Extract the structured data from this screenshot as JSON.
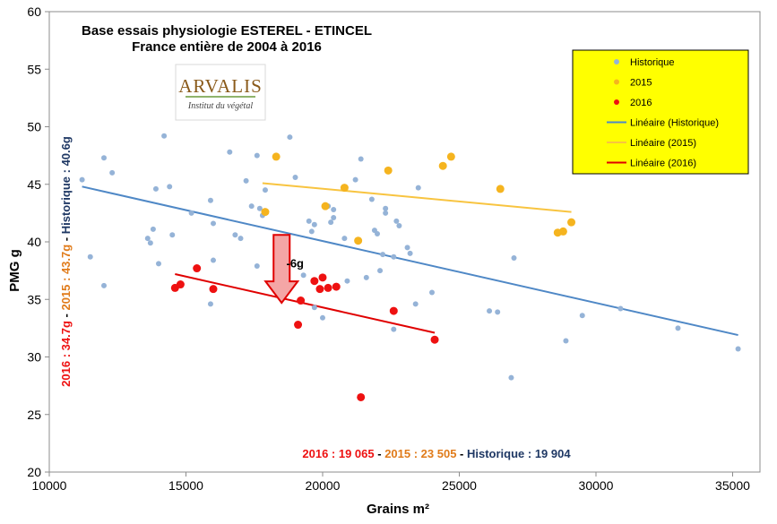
{
  "chart_data": {
    "type": "scatter",
    "title": "Base essais physiologie ESTEREL - ETINCEL",
    "subtitle": "France entière de 2004 à 2016",
    "xlabel": "Grains m²",
    "ylabel": "PMG g",
    "xlim": [
      10000,
      36000
    ],
    "ylim": [
      20,
      60
    ],
    "x_ticks": [
      "10000",
      "15000",
      "20000",
      "25000",
      "30000",
      "35000"
    ],
    "y_ticks": [
      "20",
      "25",
      "30",
      "35",
      "40",
      "45",
      "50",
      "55",
      "60"
    ],
    "grid": false,
    "legend_position": "top-right",
    "legend": [
      {
        "label": "Historique",
        "kind": "marker",
        "color": "#95b3d7"
      },
      {
        "label": "2015",
        "kind": "marker",
        "color": "#f5b41f"
      },
      {
        "label": "2016",
        "kind": "marker",
        "color": "#ee1111"
      },
      {
        "label": "Linéaire (Historique)",
        "kind": "line",
        "color": "#4f88c6"
      },
      {
        "label": "Linéaire (2015)",
        "kind": "line",
        "color": "#f8c440"
      },
      {
        "label": "Linéaire (2016)",
        "kind": "line",
        "color": "#e00000"
      }
    ],
    "series": [
      {
        "name": "Historique",
        "color": "#95b3d7",
        "points": [
          [
            11200,
            45.4
          ],
          [
            11500,
            38.7
          ],
          [
            12000,
            47.3
          ],
          [
            12000,
            36.2
          ],
          [
            12300,
            46.0
          ],
          [
            13600,
            40.3
          ],
          [
            13700,
            39.9
          ],
          [
            13800,
            41.1
          ],
          [
            13900,
            44.6
          ],
          [
            14000,
            38.1
          ],
          [
            14200,
            49.2
          ],
          [
            14400,
            44.8
          ],
          [
            14500,
            40.6
          ],
          [
            15200,
            42.5
          ],
          [
            15900,
            43.6
          ],
          [
            15900,
            34.6
          ],
          [
            16000,
            41.6
          ],
          [
            16000,
            38.4
          ],
          [
            16600,
            47.8
          ],
          [
            16800,
            40.6
          ],
          [
            17000,
            40.3
          ],
          [
            17200,
            45.3
          ],
          [
            17400,
            43.1
          ],
          [
            17600,
            47.5
          ],
          [
            17600,
            37.9
          ],
          [
            17700,
            42.9
          ],
          [
            17800,
            42.3
          ],
          [
            17900,
            44.5
          ],
          [
            18300,
            40.2
          ],
          [
            18800,
            49.1
          ],
          [
            19000,
            45.6
          ],
          [
            19300,
            37.1
          ],
          [
            19500,
            41.8
          ],
          [
            19600,
            40.9
          ],
          [
            19700,
            41.5
          ],
          [
            19700,
            34.3
          ],
          [
            20000,
            33.4
          ],
          [
            20200,
            43.1
          ],
          [
            20300,
            41.7
          ],
          [
            20400,
            42.1
          ],
          [
            20400,
            42.8
          ],
          [
            20800,
            40.3
          ],
          [
            20900,
            36.6
          ],
          [
            21200,
            45.4
          ],
          [
            21400,
            47.2
          ],
          [
            21600,
            36.9
          ],
          [
            21800,
            43.7
          ],
          [
            21900,
            41.0
          ],
          [
            22000,
            40.7
          ],
          [
            22100,
            37.5
          ],
          [
            22200,
            38.9
          ],
          [
            22300,
            42.9
          ],
          [
            22300,
            42.5
          ],
          [
            22600,
            32.4
          ],
          [
            22600,
            38.7
          ],
          [
            22700,
            41.8
          ],
          [
            22800,
            41.4
          ],
          [
            23100,
            39.5
          ],
          [
            23200,
            39.0
          ],
          [
            23400,
            34.6
          ],
          [
            23500,
            44.7
          ],
          [
            24000,
            35.6
          ],
          [
            26100,
            34.0
          ],
          [
            26400,
            33.9
          ],
          [
            26900,
            28.2
          ],
          [
            27000,
            38.6
          ],
          [
            28900,
            31.4
          ],
          [
            29500,
            33.6
          ],
          [
            30900,
            34.2
          ],
          [
            33000,
            32.5
          ],
          [
            35200,
            30.7
          ]
        ]
      },
      {
        "name": "2015",
        "color": "#f5b41f",
        "points": [
          [
            17900,
            42.6
          ],
          [
            18300,
            47.4
          ],
          [
            20100,
            43.1
          ],
          [
            20800,
            44.7
          ],
          [
            21300,
            40.1
          ],
          [
            22400,
            46.2
          ],
          [
            24400,
            46.6
          ],
          [
            24700,
            47.4
          ],
          [
            26500,
            44.6
          ],
          [
            28600,
            40.8
          ],
          [
            28800,
            40.9
          ],
          [
            29100,
            41.7
          ]
        ]
      },
      {
        "name": "2016",
        "color": "#ee1111",
        "points": [
          [
            14600,
            36.0
          ],
          [
            14800,
            36.3
          ],
          [
            15400,
            37.7
          ],
          [
            16000,
            35.9
          ],
          [
            19100,
            32.8
          ],
          [
            19200,
            34.9
          ],
          [
            19700,
            36.6
          ],
          [
            19900,
            35.9
          ],
          [
            20000,
            36.9
          ],
          [
            20200,
            36.0
          ],
          [
            20500,
            36.1
          ],
          [
            21400,
            26.5
          ],
          [
            22600,
            34.0
          ],
          [
            24100,
            31.5
          ]
        ]
      }
    ],
    "trendlines": [
      {
        "name": "Linéaire (Historique)",
        "color": "#4f88c6",
        "from": [
          11200,
          44.8
        ],
        "to": [
          35200,
          31.9
        ]
      },
      {
        "name": "Linéaire (2015)",
        "color": "#f8c440",
        "from": [
          17800,
          45.1
        ],
        "to": [
          29100,
          42.6
        ]
      },
      {
        "name": "Linéaire (2016)",
        "color": "#e00000",
        "from": [
          14600,
          37.2
        ],
        "to": [
          24100,
          32.1
        ]
      }
    ],
    "arrow": {
      "label": "-6g",
      "from": [
        18500,
        40.6
      ],
      "to": [
        18500,
        34.7
      ]
    },
    "annotation_bottom": {
      "part_2016": "2016 : 19 065",
      "sep1": " - ",
      "part_2015": "2015 : 23 505",
      "sep2": " - ",
      "part_hist": "Historique : 19 904"
    },
    "annotation_left": {
      "part_2016": "2016 : 34.7g",
      "sep1": " - ",
      "part_2015": "2015 : 43.7g",
      "sep2": " - ",
      "part_hist": "Historique : 40.6g"
    },
    "annotation_colors": {
      "c2016": "#ee1111",
      "c2015": "#e07b1a",
      "chist": "#1f3864",
      "sep": "#000000"
    }
  },
  "logo": {
    "name": "ARVALIS",
    "tagline": "Institut du végétal"
  }
}
